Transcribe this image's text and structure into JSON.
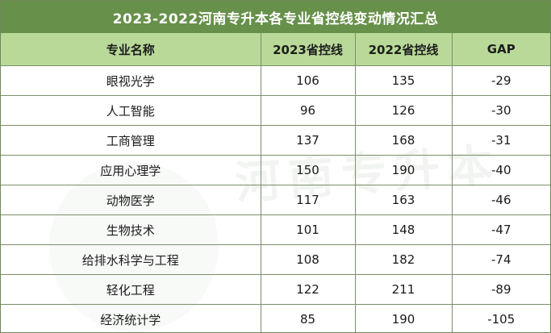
{
  "title": "2023-2022河南专升本各专业省控线变动情况汇总",
  "headers": [
    "专业名称",
    "2023省控线",
    "2022省控线",
    "GAP"
  ],
  "rows": [
    {
      "major": "眼视光学",
      "y2023": "106",
      "y2022": "135",
      "gap": "-29"
    },
    {
      "major": "人工智能",
      "y2023": "96",
      "y2022": "126",
      "gap": "-30"
    },
    {
      "major": "工商管理",
      "y2023": "137",
      "y2022": "168",
      "gap": "-31"
    },
    {
      "major": "应用心理学",
      "y2023": "150",
      "y2022": "190",
      "gap": "-40"
    },
    {
      "major": "动物医学",
      "y2023": "117",
      "y2022": "163",
      "gap": "-46"
    },
    {
      "major": "生物技术",
      "y2023": "101",
      "y2022": "148",
      "gap": "-47"
    },
    {
      "major": "给排水科学与工程",
      "y2023": "108",
      "y2022": "182",
      "gap": "-74"
    },
    {
      "major": "轻化工程",
      "y2023": "122",
      "y2022": "211",
      "gap": "-89"
    },
    {
      "major": "经济统计学",
      "y2023": "85",
      "y2022": "190",
      "gap": "-105"
    }
  ],
  "watermark": "河南专升本",
  "colors": {
    "title_bg": "#67904a",
    "header_bg": "#b8d998",
    "border": "#7c8f6c"
  }
}
